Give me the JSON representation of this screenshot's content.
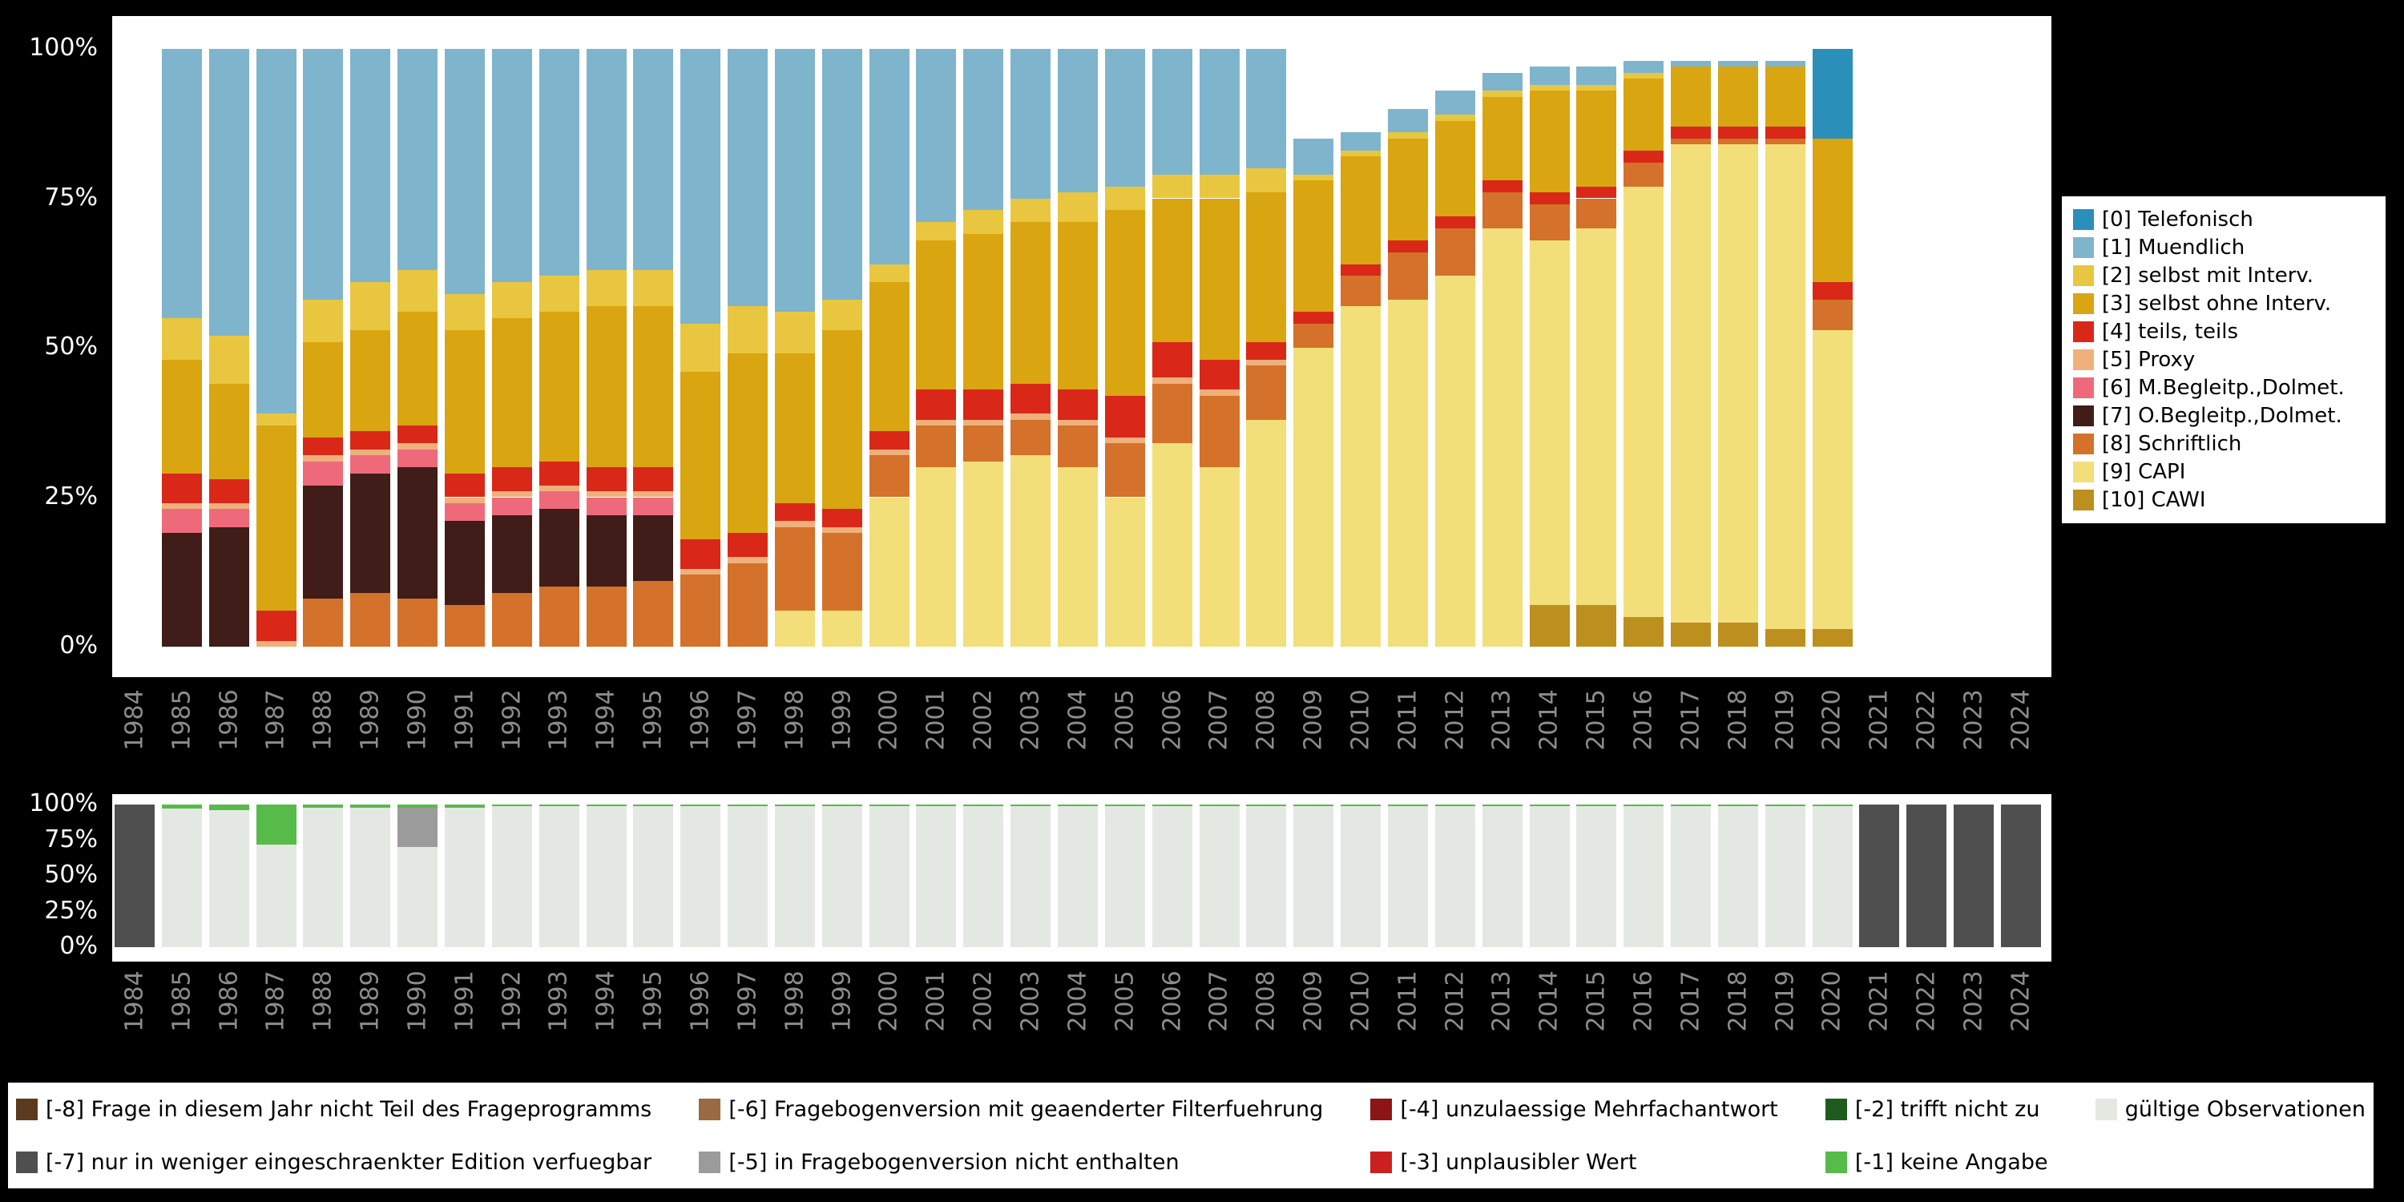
{
  "style": {
    "background": "#000000",
    "panel_background": "#ffffff",
    "x_tick_color": "#8c8c8c",
    "y_tick_color": "#ffffff"
  },
  "chart_data": [
    {
      "type": "bar",
      "stacked": true,
      "title": "",
      "xlabel": "",
      "ylabel": "",
      "ylim": [
        0,
        100
      ],
      "grid": false,
      "legend_position": "right",
      "categories": [
        1984,
        1985,
        1986,
        1987,
        1988,
        1989,
        1990,
        1991,
        1992,
        1993,
        1994,
        1995,
        1996,
        1997,
        1998,
        1999,
        2000,
        2001,
        2002,
        2003,
        2004,
        2005,
        2006,
        2007,
        2008,
        2009,
        2010,
        2011,
        2012,
        2013,
        2014,
        2015,
        2016,
        2017,
        2018,
        2019,
        2020,
        2021,
        2022,
        2023,
        2024
      ],
      "y_ticks": [
        {
          "label": "0%",
          "value": 0
        },
        {
          "label": "25%",
          "value": 25
        },
        {
          "label": "50%",
          "value": 50
        },
        {
          "label": "75%",
          "value": 75
        },
        {
          "label": "100%",
          "value": 100
        }
      ],
      "stack_order": "bottom-to-top",
      "series": [
        {
          "name": "[10] CAWI",
          "color": "#bd8f1e",
          "values": [
            0,
            0,
            0,
            0,
            0,
            0,
            0,
            0,
            0,
            0,
            0,
            0,
            0,
            0,
            0,
            0,
            0,
            0,
            0,
            0,
            0,
            0,
            0,
            0,
            0,
            0,
            0,
            0,
            0,
            0,
            7,
            7,
            5,
            4,
            4,
            3,
            3,
            0,
            0,
            0,
            0
          ]
        },
        {
          "name": "[9] CAPI",
          "color": "#f2df7a",
          "values": [
            0,
            0,
            0,
            0,
            0,
            0,
            0,
            0,
            0,
            0,
            0,
            0,
            0,
            0,
            6,
            6,
            25,
            30,
            31,
            32,
            30,
            25,
            34,
            30,
            38,
            50,
            57,
            58,
            62,
            70,
            61,
            63,
            72,
            80,
            80,
            81,
            50,
            0,
            0,
            0,
            0
          ]
        },
        {
          "name": "[8] Schriftlich",
          "color": "#d4712a",
          "values": [
            0,
            0,
            0,
            0,
            8,
            9,
            8,
            7,
            9,
            10,
            10,
            11,
            12,
            14,
            14,
            13,
            7,
            7,
            6,
            6,
            7,
            9,
            10,
            12,
            9,
            4,
            5,
            8,
            8,
            6,
            6,
            5,
            4,
            1,
            1,
            1,
            5,
            0,
            0,
            0,
            0
          ]
        },
        {
          "name": "[7] O.Begleitp.,Dolmet.",
          "color": "#401d18",
          "values": [
            0,
            19,
            20,
            0,
            19,
            20,
            22,
            14,
            13,
            13,
            12,
            11,
            0,
            0,
            0,
            0,
            0,
            0,
            0,
            0,
            0,
            0,
            0,
            0,
            0,
            0,
            0,
            0,
            0,
            0,
            0,
            0,
            0,
            0,
            0,
            0,
            0,
            0,
            0,
            0,
            0
          ]
        },
        {
          "name": "[6] M.Begleitp.,Dolmet.",
          "color": "#ee6a7b",
          "values": [
            0,
            4,
            3,
            0,
            4,
            3,
            3,
            3,
            3,
            3,
            3,
            3,
            0,
            0,
            0,
            0,
            0,
            0,
            0,
            0,
            0,
            0,
            0,
            0,
            0,
            0,
            0,
            0,
            0,
            0,
            0,
            0,
            0,
            0,
            0,
            0,
            0,
            0,
            0,
            0,
            0
          ]
        },
        {
          "name": "[5] Proxy",
          "color": "#f0b07c",
          "values": [
            0,
            1,
            1,
            1,
            1,
            1,
            1,
            1,
            1,
            1,
            1,
            1,
            1,
            1,
            1,
            1,
            1,
            1,
            1,
            1,
            1,
            1,
            1,
            1,
            1,
            0,
            0,
            0,
            0,
            0,
            0,
            0,
            0,
            0,
            0,
            0,
            0,
            0,
            0,
            0,
            0
          ]
        },
        {
          "name": "[4] teils, teils",
          "color": "#d92818",
          "values": [
            0,
            5,
            4,
            5,
            3,
            3,
            3,
            4,
            4,
            4,
            4,
            4,
            5,
            4,
            3,
            3,
            3,
            5,
            5,
            5,
            5,
            7,
            6,
            5,
            3,
            2,
            2,
            2,
            2,
            2,
            2,
            2,
            2,
            2,
            2,
            2,
            3,
            0,
            0,
            0,
            0
          ]
        },
        {
          "name": "[3] selbst ohne Interv.",
          "color": "#d9a511",
          "values": [
            0,
            19,
            16,
            31,
            16,
            17,
            19,
            24,
            25,
            25,
            27,
            27,
            28,
            30,
            25,
            30,
            25,
            25,
            26,
            27,
            28,
            31,
            24,
            27,
            25,
            22,
            18,
            17,
            16,
            14,
            17,
            16,
            12,
            10,
            10,
            10,
            24,
            0,
            0,
            0,
            0
          ]
        },
        {
          "name": "[2] selbst mit Interv.",
          "color": "#e9c63f",
          "values": [
            0,
            7,
            8,
            2,
            7,
            8,
            7,
            6,
            6,
            6,
            6,
            6,
            8,
            8,
            7,
            5,
            3,
            3,
            4,
            4,
            5,
            4,
            4,
            4,
            4,
            1,
            1,
            1,
            1,
            1,
            1,
            1,
            1,
            0,
            0,
            0,
            0,
            0,
            0,
            0,
            0
          ]
        },
        {
          "name": "[1] Muendlich",
          "color": "#7fb5cc",
          "values": [
            0,
            45,
            48,
            61,
            42,
            39,
            37,
            41,
            39,
            38,
            37,
            37,
            46,
            43,
            44,
            42,
            36,
            29,
            27,
            25,
            24,
            23,
            21,
            21,
            20,
            6,
            3,
            4,
            4,
            3,
            3,
            3,
            2,
            1,
            1,
            1,
            0,
            0,
            0,
            0,
            0
          ]
        },
        {
          "name": "[0] Telefonisch",
          "color": "#2a8fb9",
          "values": [
            0,
            0,
            0,
            0,
            0,
            0,
            0,
            0,
            0,
            0,
            0,
            0,
            0,
            0,
            0,
            0,
            0,
            0,
            0,
            0,
            0,
            0,
            0,
            0,
            0,
            0,
            0,
            0,
            0,
            0,
            0,
            0,
            0,
            0,
            0,
            0,
            15,
            0,
            0,
            0,
            0
          ]
        }
      ],
      "legend": [
        {
          "label": "[0] Telefonisch",
          "color": "#2a8fb9"
        },
        {
          "label": "[1] Muendlich",
          "color": "#7fb5cc"
        },
        {
          "label": "[2] selbst mit Interv.",
          "color": "#e9c63f"
        },
        {
          "label": "[3] selbst ohne Interv.",
          "color": "#d9a511"
        },
        {
          "label": "[4] teils, teils",
          "color": "#d92818"
        },
        {
          "label": "[5] Proxy",
          "color": "#f0b07c"
        },
        {
          "label": "[6] M.Begleitp.,Dolmet.",
          "color": "#ee6a7b"
        },
        {
          "label": "[7] O.Begleitp.,Dolmet.",
          "color": "#401d18"
        },
        {
          "label": "[8] Schriftlich",
          "color": "#d4712a"
        },
        {
          "label": "[9] CAPI",
          "color": "#f2df7a"
        },
        {
          "label": "[10] CAWI",
          "color": "#bd8f1e"
        }
      ]
    },
    {
      "type": "bar",
      "stacked": true,
      "title": "",
      "xlabel": "",
      "ylabel": "",
      "ylim": [
        0,
        100
      ],
      "grid": false,
      "legend_position": "bottom",
      "categories": [
        1984,
        1985,
        1986,
        1987,
        1988,
        1989,
        1990,
        1991,
        1992,
        1993,
        1994,
        1995,
        1996,
        1997,
        1998,
        1999,
        2000,
        2001,
        2002,
        2003,
        2004,
        2005,
        2006,
        2007,
        2008,
        2009,
        2010,
        2011,
        2012,
        2013,
        2014,
        2015,
        2016,
        2017,
        2018,
        2019,
        2020,
        2021,
        2022,
        2023,
        2024
      ],
      "y_ticks": [
        {
          "label": "0%",
          "value": 0
        },
        {
          "label": "25%",
          "value": 25
        },
        {
          "label": "50%",
          "value": 50
        },
        {
          "label": "75%",
          "value": 75
        },
        {
          "label": "100%",
          "value": 100
        }
      ],
      "stack_order": "bottom-to-top",
      "series": [
        {
          "name": "gültige Observationen",
          "color": "#e4e8e2",
          "values": [
            0,
            97,
            96,
            72,
            98,
            98,
            70,
            98,
            99,
            99,
            99,
            99,
            99,
            99,
            99,
            99,
            99,
            99,
            99,
            99,
            99,
            99,
            99,
            99,
            99,
            99,
            99,
            99,
            99,
            99,
            99,
            99,
            99,
            99,
            99,
            99,
            99,
            0,
            0,
            0,
            0
          ]
        },
        {
          "name": "[-5] in Fragebogenversion nicht enthalten",
          "color": "#9b9b9b",
          "values": [
            0,
            0,
            0,
            0,
            0,
            0,
            28,
            0,
            0,
            0,
            0,
            0,
            0,
            0,
            0,
            0,
            0,
            0,
            0,
            0,
            0,
            0,
            0,
            0,
            0,
            0,
            0,
            0,
            0,
            0,
            0,
            0,
            0,
            0,
            0,
            0,
            0,
            0,
            0,
            0,
            0
          ]
        },
        {
          "name": "[-1] keine Angabe",
          "color": "#57bb49",
          "values": [
            0,
            3,
            4,
            28,
            2,
            2,
            2,
            2,
            1,
            1,
            1,
            1,
            1,
            1,
            1,
            1,
            1,
            1,
            1,
            1,
            1,
            1,
            1,
            1,
            1,
            1,
            1,
            1,
            1,
            1,
            1,
            1,
            1,
            1,
            1,
            1,
            1,
            0,
            0,
            0,
            0
          ]
        },
        {
          "name": "[-7] nur in weniger eingeschraenkter Edition verfuegbar",
          "color": "#4f4f4f",
          "values": [
            100,
            0,
            0,
            0,
            0,
            0,
            0,
            0,
            0,
            0,
            0,
            0,
            0,
            0,
            0,
            0,
            0,
            0,
            0,
            0,
            0,
            0,
            0,
            0,
            0,
            0,
            0,
            0,
            0,
            0,
            0,
            0,
            0,
            0,
            0,
            0,
            0,
            100,
            100,
            100,
            100
          ]
        }
      ],
      "legend": [
        {
          "label": "[-8] Frage in diesem Jahr nicht Teil des Frageprogramms",
          "color": "#5b3a1e"
        },
        {
          "label": "[-7] nur in weniger eingeschraenkter Edition verfuegbar",
          "color": "#4f4f4f"
        },
        {
          "label": "[-6] Fragebogenversion mit geaenderter Filterfuehrung",
          "color": "#9a6a43"
        },
        {
          "label": "[-5] in Fragebogenversion nicht enthalten",
          "color": "#9b9b9b"
        },
        {
          "label": "[-4] unzulaessige Mehrfachantwort",
          "color": "#8c1515"
        },
        {
          "label": "[-3] unplausibler Wert",
          "color": "#cc2020"
        },
        {
          "label": "[-2] trifft nicht zu",
          "color": "#1e5c1e"
        },
        {
          "label": "[-1] keine Angabe",
          "color": "#57bb49"
        },
        {
          "label": "gültige Observationen",
          "color": "#e4e8e2"
        }
      ]
    }
  ]
}
